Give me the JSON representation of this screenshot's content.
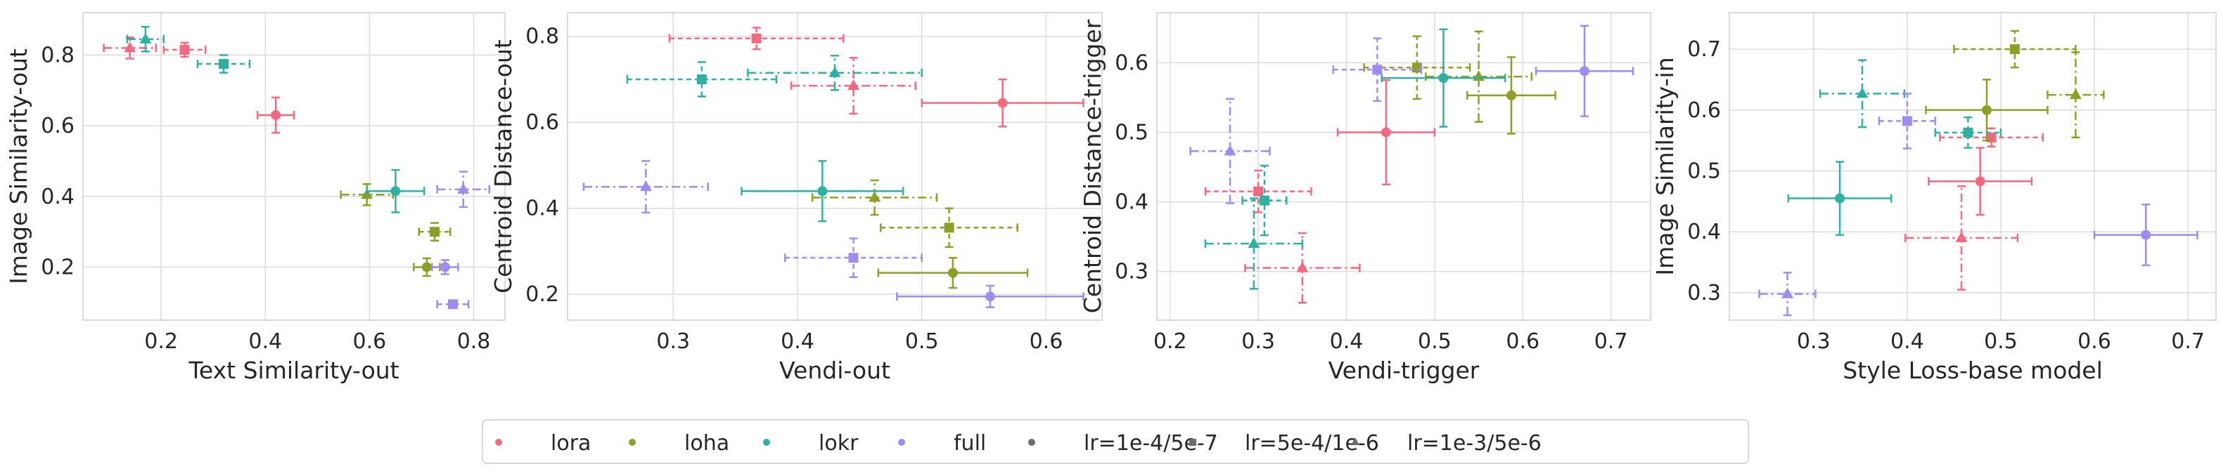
{
  "legend": {
    "methods": [
      {
        "label": "lora",
        "color": "#f3697f"
      },
      {
        "label": "loha",
        "color": "#8f9e26"
      },
      {
        "label": "lokr",
        "color": "#2fb1a1"
      },
      {
        "label": "full",
        "color": "#a08cf0"
      }
    ],
    "learning_rates": [
      {
        "label": "lr=1e-4/5e-7",
        "marker": "circle"
      },
      {
        "label": "lr=5e-4/1e-6",
        "marker": "square"
      },
      {
        "label": "lr=1e-3/5e-6",
        "marker": "triangle"
      }
    ]
  },
  "chart_data": [
    {
      "type": "scatter",
      "xlabel": "Text Similarity-out",
      "ylabel": "Image Similarity-out",
      "xlim": [
        0.05,
        0.86
      ],
      "ylim": [
        0.05,
        0.92
      ],
      "xticks": [
        0.2,
        0.4,
        0.6,
        0.8
      ],
      "yticks": [
        0.2,
        0.4,
        0.6,
        0.8
      ],
      "grid": true,
      "points": [
        {
          "method": "lora",
          "lr": "lr=1e-4/5e-7",
          "x": 0.42,
          "y": 0.63,
          "xerr": 0.035,
          "yerr": 0.05
        },
        {
          "method": "lora",
          "lr": "lr=5e-4/1e-6",
          "x": 0.245,
          "y": 0.815,
          "xerr": 0.04,
          "yerr": 0.02
        },
        {
          "method": "lora",
          "lr": "lr=1e-3/5e-6",
          "x": 0.14,
          "y": 0.82,
          "xerr": 0.05,
          "yerr": 0.03
        },
        {
          "method": "loha",
          "lr": "lr=1e-4/5e-7",
          "x": 0.71,
          "y": 0.2,
          "xerr": 0.025,
          "yerr": 0.025
        },
        {
          "method": "loha",
          "lr": "lr=5e-4/1e-6",
          "x": 0.725,
          "y": 0.3,
          "xerr": 0.03,
          "yerr": 0.025
        },
        {
          "method": "loha",
          "lr": "lr=1e-3/5e-6",
          "x": 0.595,
          "y": 0.405,
          "xerr": 0.05,
          "yerr": 0.03
        },
        {
          "method": "lokr",
          "lr": "lr=1e-4/5e-7",
          "x": 0.65,
          "y": 0.415,
          "xerr": 0.055,
          "yerr": 0.06
        },
        {
          "method": "lokr",
          "lr": "lr=5e-4/1e-6",
          "x": 0.32,
          "y": 0.775,
          "xerr": 0.05,
          "yerr": 0.025
        },
        {
          "method": "lokr",
          "lr": "lr=1e-3/5e-6",
          "x": 0.17,
          "y": 0.845,
          "xerr": 0.035,
          "yerr": 0.035
        },
        {
          "method": "full",
          "lr": "lr=1e-4/5e-7",
          "x": 0.745,
          "y": 0.2,
          "xerr": 0.025,
          "yerr": 0.02
        },
        {
          "method": "full",
          "lr": "lr=5e-4/1e-6",
          "x": 0.76,
          "y": 0.095,
          "xerr": 0.03,
          "yerr": 0.008
        },
        {
          "method": "full",
          "lr": "lr=1e-3/5e-6",
          "x": 0.78,
          "y": 0.42,
          "xerr": 0.05,
          "yerr": 0.05
        }
      ]
    },
    {
      "type": "scatter",
      "xlabel": "Vendi-out",
      "ylabel": "Centroid Distance-out",
      "xlim": [
        0.215,
        0.645
      ],
      "ylim": [
        0.14,
        0.855
      ],
      "xticks": [
        0.3,
        0.4,
        0.5,
        0.6
      ],
      "yticks": [
        0.2,
        0.4,
        0.6,
        0.8
      ],
      "grid": true,
      "points": [
        {
          "method": "lora",
          "lr": "lr=1e-4/5e-7",
          "x": 0.565,
          "y": 0.645,
          "xerr": 0.065,
          "yerr": 0.055
        },
        {
          "method": "lora",
          "lr": "lr=5e-4/1e-6",
          "x": 0.367,
          "y": 0.795,
          "xerr": 0.07,
          "yerr": 0.025
        },
        {
          "method": "lora",
          "lr": "lr=1e-3/5e-6",
          "x": 0.445,
          "y": 0.685,
          "xerr": 0.05,
          "yerr": 0.065
        },
        {
          "method": "loha",
          "lr": "lr=1e-4/5e-7",
          "x": 0.525,
          "y": 0.25,
          "xerr": 0.06,
          "yerr": 0.035
        },
        {
          "method": "loha",
          "lr": "lr=5e-4/1e-6",
          "x": 0.522,
          "y": 0.355,
          "xerr": 0.055,
          "yerr": 0.045
        },
        {
          "method": "loha",
          "lr": "lr=1e-3/5e-6",
          "x": 0.462,
          "y": 0.425,
          "xerr": 0.05,
          "yerr": 0.04
        },
        {
          "method": "lokr",
          "lr": "lr=1e-4/5e-7",
          "x": 0.42,
          "y": 0.44,
          "xerr": 0.065,
          "yerr": 0.07
        },
        {
          "method": "lokr",
          "lr": "lr=5e-4/1e-6",
          "x": 0.323,
          "y": 0.7,
          "xerr": 0.06,
          "yerr": 0.04
        },
        {
          "method": "lokr",
          "lr": "lr=1e-3/5e-6",
          "x": 0.43,
          "y": 0.715,
          "xerr": 0.07,
          "yerr": 0.04
        },
        {
          "method": "full",
          "lr": "lr=1e-4/5e-7",
          "x": 0.555,
          "y": 0.195,
          "xerr": 0.075,
          "yerr": 0.025
        },
        {
          "method": "full",
          "lr": "lr=5e-4/1e-6",
          "x": 0.445,
          "y": 0.285,
          "xerr": 0.055,
          "yerr": 0.045
        },
        {
          "method": "full",
          "lr": "lr=1e-3/5e-6",
          "x": 0.278,
          "y": 0.45,
          "xerr": 0.05,
          "yerr": 0.06
        }
      ]
    },
    {
      "type": "scatter",
      "xlabel": "Vendi-trigger",
      "ylabel": "Centroid Distance-trigger",
      "xlim": [
        0.185,
        0.745
      ],
      "ylim": [
        0.23,
        0.672
      ],
      "xticks": [
        0.2,
        0.3,
        0.4,
        0.5,
        0.6,
        0.7
      ],
      "yticks": [
        0.3,
        0.4,
        0.5,
        0.6
      ],
      "grid": true,
      "points": [
        {
          "method": "lora",
          "lr": "lr=1e-4/5e-7",
          "x": 0.445,
          "y": 0.5,
          "xerr": 0.055,
          "yerr": 0.075
        },
        {
          "method": "lora",
          "lr": "lr=5e-4/1e-6",
          "x": 0.3,
          "y": 0.415,
          "xerr": 0.06,
          "yerr": 0.03
        },
        {
          "method": "lora",
          "lr": "lr=1e-3/5e-6",
          "x": 0.35,
          "y": 0.305,
          "xerr": 0.065,
          "yerr": 0.05
        },
        {
          "method": "loha",
          "lr": "lr=1e-4/5e-7",
          "x": 0.587,
          "y": 0.553,
          "xerr": 0.05,
          "yerr": 0.055
        },
        {
          "method": "loha",
          "lr": "lr=5e-4/1e-6",
          "x": 0.48,
          "y": 0.593,
          "xerr": 0.06,
          "yerr": 0.045
        },
        {
          "method": "loha",
          "lr": "lr=1e-3/5e-6",
          "x": 0.55,
          "y": 0.58,
          "xerr": 0.06,
          "yerr": 0.065
        },
        {
          "method": "lokr",
          "lr": "lr=1e-4/5e-7",
          "x": 0.51,
          "y": 0.578,
          "xerr": 0.07,
          "yerr": 0.07
        },
        {
          "method": "lokr",
          "lr": "lr=5e-4/1e-6",
          "x": 0.307,
          "y": 0.402,
          "xerr": 0.025,
          "yerr": 0.05
        },
        {
          "method": "lokr",
          "lr": "lr=1e-3/5e-6",
          "x": 0.295,
          "y": 0.34,
          "xerr": 0.055,
          "yerr": 0.065
        },
        {
          "method": "full",
          "lr": "lr=1e-4/5e-7",
          "x": 0.67,
          "y": 0.588,
          "xerr": 0.055,
          "yerr": 0.065
        },
        {
          "method": "full",
          "lr": "lr=5e-4/1e-6",
          "x": 0.435,
          "y": 0.59,
          "xerr": 0.05,
          "yerr": 0.045
        },
        {
          "method": "full",
          "lr": "lr=1e-3/5e-6",
          "x": 0.268,
          "y": 0.473,
          "xerr": 0.045,
          "yerr": 0.075
        }
      ]
    },
    {
      "type": "scatter",
      "xlabel": "Style Loss-base model",
      "ylabel": "Image Similarity-in",
      "xlim": [
        0.21,
        0.73
      ],
      "ylim": [
        0.255,
        0.76
      ],
      "xticks": [
        0.3,
        0.4,
        0.5,
        0.6,
        0.7
      ],
      "yticks": [
        0.3,
        0.4,
        0.5,
        0.6,
        0.7
      ],
      "grid": true,
      "points": [
        {
          "method": "lora",
          "lr": "lr=1e-4/5e-7",
          "x": 0.478,
          "y": 0.483,
          "xerr": 0.055,
          "yerr": 0.055
        },
        {
          "method": "lora",
          "lr": "lr=5e-4/1e-6",
          "x": 0.49,
          "y": 0.555,
          "xerr": 0.055,
          "yerr": 0.015
        },
        {
          "method": "lora",
          "lr": "lr=1e-3/5e-6",
          "x": 0.458,
          "y": 0.39,
          "xerr": 0.06,
          "yerr": 0.085
        },
        {
          "method": "loha",
          "lr": "lr=1e-4/5e-7",
          "x": 0.485,
          "y": 0.6,
          "xerr": 0.065,
          "yerr": 0.05
        },
        {
          "method": "loha",
          "lr": "lr=5e-4/1e-6",
          "x": 0.515,
          "y": 0.7,
          "xerr": 0.065,
          "yerr": 0.03
        },
        {
          "method": "loha",
          "lr": "lr=1e-3/5e-6",
          "x": 0.58,
          "y": 0.625,
          "xerr": 0.03,
          "yerr": 0.07
        },
        {
          "method": "lokr",
          "lr": "lr=1e-4/5e-7",
          "x": 0.328,
          "y": 0.455,
          "xerr": 0.055,
          "yerr": 0.06
        },
        {
          "method": "lokr",
          "lr": "lr=5e-4/1e-6",
          "x": 0.465,
          "y": 0.563,
          "xerr": 0.035,
          "yerr": 0.025
        },
        {
          "method": "lokr",
          "lr": "lr=1e-3/5e-6",
          "x": 0.352,
          "y": 0.627,
          "xerr": 0.045,
          "yerr": 0.055
        },
        {
          "method": "full",
          "lr": "lr=1e-4/5e-7",
          "x": 0.655,
          "y": 0.395,
          "xerr": 0.055,
          "yerr": 0.05
        },
        {
          "method": "full",
          "lr": "lr=5e-4/1e-6",
          "x": 0.4,
          "y": 0.582,
          "xerr": 0.03,
          "yerr": 0.045
        },
        {
          "method": "full",
          "lr": "lr=1e-3/5e-6",
          "x": 0.272,
          "y": 0.298,
          "xerr": 0.03,
          "yerr": 0.035
        }
      ]
    }
  ]
}
